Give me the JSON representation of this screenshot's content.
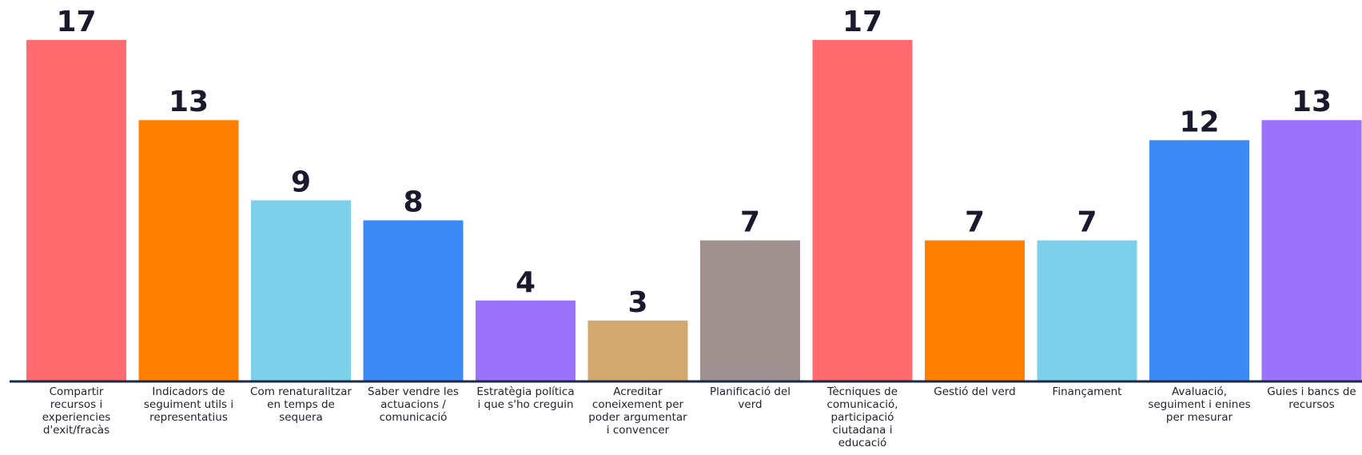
{
  "chart_data": {
    "type": "bar",
    "categories": [
      "Compartir recursos i experiencies d'exit/fracàs",
      "Indicadors de seguiment utils i representatius",
      "Com renaturalitzar en temps de sequera",
      "Saber vendre les actuacions / comunicació",
      "Estratègia política i que s'ho creguin",
      "Acreditar coneixement per poder argumentar i convencer",
      "Planificació del verd",
      "Tècniques de comunicació, participació ciutadana i educació",
      "Gestió del verd",
      "Finançament",
      "Avaluació, seguiment i enines per mesurar",
      "Guies i bancs de recursos"
    ],
    "values": [
      17,
      13,
      9,
      8,
      4,
      3,
      7,
      17,
      7,
      7,
      12,
      13
    ],
    "colors": [
      "#ff6b6e",
      "#ff8000",
      "#7dd0ea",
      "#3d8af7",
      "#9b72fb",
      "#d2a86e",
      "#9e9190",
      "#ff6b6e",
      "#ff8000",
      "#7dd0ea",
      "#3d8af7",
      "#9b72fb"
    ],
    "axis_color": "#1c2a4a",
    "ylim": [
      0,
      17
    ],
    "grid": false,
    "legend": "none",
    "data_labels": true
  }
}
